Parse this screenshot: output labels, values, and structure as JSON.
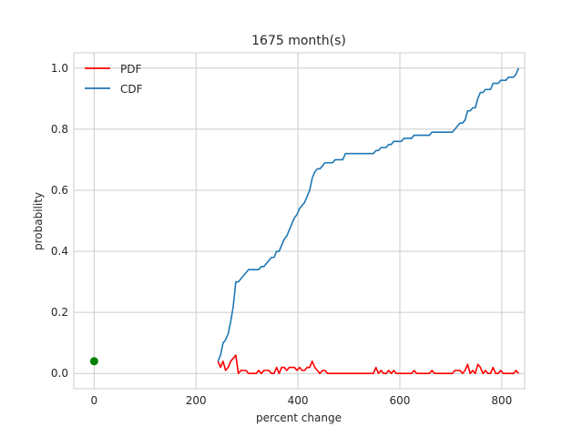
{
  "chart_data": {
    "type": "line",
    "title": "1675 month(s)",
    "xlabel": "percent change",
    "ylabel": "probability",
    "xlim": [
      -40,
      845
    ],
    "ylim": [
      -0.05,
      1.05
    ],
    "xticks": [
      0,
      200,
      400,
      600,
      800
    ],
    "yticks": [
      0.0,
      0.2,
      0.4,
      0.6,
      0.8,
      1.0
    ],
    "xtick_labels": [
      "0",
      "200",
      "400",
      "600",
      "800"
    ],
    "ytick_labels": [
      "0.0",
      "0.2",
      "0.4",
      "0.6",
      "0.8",
      "1.0"
    ],
    "grid": true,
    "legend_position": "upper-left",
    "series": [
      {
        "name": "PDF",
        "color": "#ff0000",
        "x": [
          243,
          248,
          253,
          258,
          263,
          268,
          273,
          278,
          283,
          288,
          293,
          298,
          303,
          308,
          313,
          318,
          323,
          328,
          333,
          338,
          343,
          348,
          353,
          358,
          363,
          368,
          373,
          378,
          383,
          388,
          393,
          398,
          403,
          408,
          413,
          418,
          423,
          428,
          433,
          438,
          443,
          448,
          453,
          458,
          463,
          468,
          473,
          478,
          483,
          488,
          493,
          498,
          503,
          508,
          513,
          518,
          523,
          528,
          533,
          538,
          543,
          548,
          553,
          558,
          563,
          568,
          573,
          578,
          583,
          588,
          593,
          598,
          603,
          608,
          613,
          618,
          623,
          628,
          633,
          638,
          643,
          648,
          653,
          658,
          663,
          668,
          673,
          678,
          683,
          688,
          693,
          698,
          703,
          708,
          713,
          718,
          723,
          728,
          733,
          738,
          743,
          748,
          753,
          758,
          763,
          768,
          773,
          778,
          783,
          788,
          793,
          798,
          803,
          808,
          813,
          818,
          823,
          828,
          833
        ],
        "y": [
          0.04,
          0.02,
          0.04,
          0.01,
          0.02,
          0.04,
          0.05,
          0.06,
          0.0,
          0.01,
          0.01,
          0.01,
          0.0,
          0.0,
          0.0,
          0.0,
          0.01,
          0.0,
          0.01,
          0.01,
          0.01,
          0.0,
          0.0,
          0.02,
          0.0,
          0.02,
          0.02,
          0.01,
          0.02,
          0.02,
          0.02,
          0.01,
          0.02,
          0.01,
          0.01,
          0.02,
          0.02,
          0.04,
          0.02,
          0.01,
          0.0,
          0.01,
          0.01,
          0.0,
          0.0,
          0.0,
          0.0,
          0.0,
          0.0,
          0.0,
          0.0,
          0.0,
          0.0,
          0.0,
          0.0,
          0.0,
          0.0,
          0.0,
          0.0,
          0.0,
          0.0,
          0.0,
          0.02,
          0.0,
          0.01,
          0.0,
          0.0,
          0.01,
          0.0,
          0.01,
          0.0,
          0.0,
          0.0,
          0.0,
          0.0,
          0.0,
          0.0,
          0.01,
          0.0,
          0.0,
          0.0,
          0.0,
          0.0,
          0.0,
          0.01,
          0.0,
          0.0,
          0.0,
          0.0,
          0.0,
          0.0,
          0.0,
          0.0,
          0.01,
          0.01,
          0.01,
          0.0,
          0.01,
          0.03,
          0.0,
          0.01,
          0.0,
          0.03,
          0.02,
          0.0,
          0.01,
          0.0,
          0.0,
          0.02,
          0.0,
          0.0,
          0.01,
          0.0,
          0.0,
          0.0,
          0.0,
          0.0,
          0.01,
          0.0
        ]
      },
      {
        "name": "CDF",
        "color": "#1f77b4",
        "x": [
          243,
          248,
          253,
          258,
          263,
          268,
          273,
          278,
          283,
          288,
          293,
          298,
          303,
          308,
          313,
          318,
          323,
          328,
          333,
          338,
          343,
          348,
          353,
          358,
          363,
          368,
          373,
          378,
          383,
          388,
          393,
          398,
          403,
          408,
          413,
          418,
          423,
          428,
          433,
          438,
          443,
          448,
          453,
          458,
          463,
          468,
          473,
          478,
          483,
          488,
          493,
          498,
          503,
          508,
          513,
          518,
          523,
          528,
          533,
          538,
          543,
          548,
          553,
          558,
          563,
          568,
          573,
          578,
          583,
          588,
          593,
          598,
          603,
          608,
          613,
          618,
          623,
          628,
          633,
          638,
          643,
          648,
          653,
          658,
          663,
          668,
          673,
          678,
          683,
          688,
          693,
          698,
          703,
          708,
          713,
          718,
          723,
          728,
          733,
          738,
          743,
          748,
          753,
          758,
          763,
          768,
          773,
          778,
          783,
          788,
          793,
          798,
          803,
          808,
          813,
          818,
          823,
          828,
          833
        ],
        "y": [
          0.04,
          0.06,
          0.1,
          0.11,
          0.13,
          0.17,
          0.22,
          0.3,
          0.3,
          0.31,
          0.32,
          0.33,
          0.34,
          0.34,
          0.34,
          0.34,
          0.34,
          0.35,
          0.35,
          0.36,
          0.37,
          0.38,
          0.38,
          0.4,
          0.4,
          0.42,
          0.44,
          0.45,
          0.47,
          0.49,
          0.51,
          0.52,
          0.54,
          0.55,
          0.56,
          0.58,
          0.6,
          0.64,
          0.66,
          0.67,
          0.67,
          0.68,
          0.69,
          0.69,
          0.69,
          0.69,
          0.7,
          0.7,
          0.7,
          0.7,
          0.72,
          0.72,
          0.72,
          0.72,
          0.72,
          0.72,
          0.72,
          0.72,
          0.72,
          0.72,
          0.72,
          0.72,
          0.73,
          0.73,
          0.74,
          0.74,
          0.74,
          0.75,
          0.75,
          0.76,
          0.76,
          0.76,
          0.76,
          0.77,
          0.77,
          0.77,
          0.77,
          0.78,
          0.78,
          0.78,
          0.78,
          0.78,
          0.78,
          0.78,
          0.79,
          0.79,
          0.79,
          0.79,
          0.79,
          0.79,
          0.79,
          0.79,
          0.79,
          0.8,
          0.81,
          0.82,
          0.82,
          0.83,
          0.86,
          0.86,
          0.87,
          0.87,
          0.9,
          0.92,
          0.92,
          0.93,
          0.93,
          0.93,
          0.95,
          0.95,
          0.95,
          0.96,
          0.96,
          0.96,
          0.97,
          0.97,
          0.97,
          0.98,
          1.0
        ]
      }
    ],
    "points": [
      {
        "x": 0,
        "y": 0.04,
        "color": "#008000"
      }
    ]
  }
}
